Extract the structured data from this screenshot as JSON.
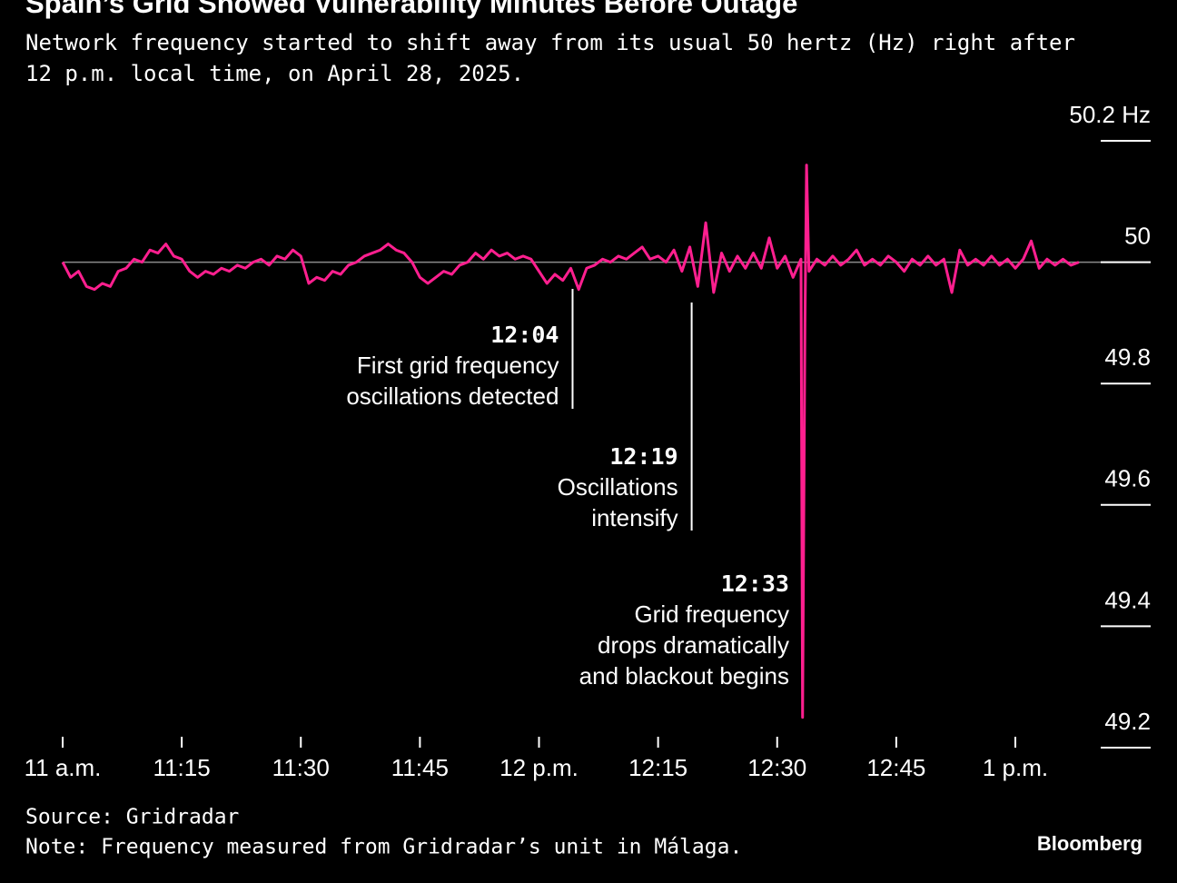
{
  "chart_data": {
    "type": "line",
    "title": "Spain’s Grid Showed Vulnerability Minutes Before Outage",
    "subtitle": [
      "Network frequency started to shift away from its usual 50 hertz (Hz) right after",
      "12 p.m. local time, on April 28, 2025."
    ],
    "xlim": [
      0,
      130
    ],
    "xticks": [
      {
        "value": 0,
        "label": "11 a.m."
      },
      {
        "value": 15,
        "label": "11:15"
      },
      {
        "value": 30,
        "label": "11:30"
      },
      {
        "value": 45,
        "label": "11:45"
      },
      {
        "value": 60,
        "label": "12 p.m."
      },
      {
        "value": 75,
        "label": "12:15"
      },
      {
        "value": 90,
        "label": "12:30"
      },
      {
        "value": 105,
        "label": "12:45"
      },
      {
        "value": 120,
        "label": "1 p.m."
      }
    ],
    "ylim": [
      49.2,
      50.2
    ],
    "yticks": [
      {
        "value": 50.2,
        "label": "50.2 Hz"
      },
      50,
      49.8,
      49.6,
      49.4,
      49.2
    ],
    "reference": 50,
    "series": [
      {
        "color": "#ff1f8f",
        "x": [
          0,
          1,
          2,
          3,
          4,
          5,
          6,
          7,
          8,
          9,
          10,
          11,
          12,
          13,
          14,
          15,
          16,
          17,
          18,
          19,
          20,
          21,
          22,
          23,
          24,
          25,
          26,
          27,
          28,
          29,
          30,
          31,
          32,
          33,
          34,
          35,
          36,
          37,
          38,
          39,
          40,
          41,
          42,
          43,
          44,
          45,
          46,
          47,
          48,
          49,
          50,
          51,
          52,
          53,
          54,
          55,
          56,
          57,
          58,
          59,
          60,
          61,
          62,
          63,
          64,
          65,
          66,
          67,
          68,
          69,
          70,
          71,
          72,
          73,
          74,
          75,
          76,
          77,
          78,
          79,
          80,
          81,
          82,
          83,
          84,
          85,
          86,
          87,
          88,
          89,
          90,
          91,
          92,
          93,
          93.2,
          93.5,
          93.7,
          94,
          95,
          96,
          97,
          98,
          99,
          100,
          101,
          102,
          103,
          104,
          105,
          106,
          107,
          108,
          109,
          110,
          111,
          112,
          113,
          114,
          115,
          116,
          117,
          118,
          119,
          120,
          121,
          122,
          123,
          124,
          125,
          126,
          127,
          128
        ],
        "values": [
          50.0,
          49.975,
          49.985,
          49.96,
          49.955,
          49.965,
          49.96,
          49.985,
          49.99,
          50.005,
          50.0,
          50.02,
          50.015,
          50.03,
          50.01,
          50.005,
          49.985,
          49.975,
          49.985,
          49.98,
          49.99,
          49.985,
          49.995,
          49.99,
          50.0,
          50.005,
          49.995,
          50.01,
          50.005,
          50.02,
          50.01,
          49.965,
          49.975,
          49.97,
          49.985,
          49.98,
          49.995,
          50.0,
          50.01,
          50.015,
          50.02,
          50.03,
          50.02,
          50.015,
          50.0,
          49.975,
          49.965,
          49.975,
          49.985,
          49.98,
          49.995,
          50.0,
          50.015,
          50.005,
          50.02,
          50.01,
          50.015,
          50.005,
          50.01,
          50.005,
          49.985,
          49.965,
          49.98,
          49.97,
          49.99,
          49.955,
          49.99,
          49.995,
          50.005,
          50.0,
          50.01,
          50.005,
          50.015,
          50.025,
          50.005,
          50.01,
          50.0,
          50.02,
          49.985,
          50.025,
          49.96,
          50.065,
          49.95,
          50.015,
          49.985,
          50.01,
          49.99,
          50.015,
          49.99,
          50.04,
          49.99,
          50.01,
          49.975,
          50.005,
          49.25,
          49.9,
          50.16,
          49.985,
          50.005,
          49.995,
          50.01,
          49.995,
          50.005,
          50.02,
          49.995,
          50.005,
          49.995,
          50.01,
          50.0,
          49.985,
          50.005,
          49.995,
          50.01,
          49.995,
          50.005,
          49.95,
          50.02,
          49.995,
          50.005,
          49.995,
          50.01,
          49.995,
          50.005,
          49.99,
          50.005,
          50.035,
          49.99,
          50.005,
          49.995,
          50.005,
          49.995,
          50.0
        ]
      }
    ],
    "annotations": [
      {
        "x": 64,
        "time": "12:04",
        "lines": [
          "First grid frequency",
          "oscillations detected"
        ]
      },
      {
        "x": 79,
        "time": "12:19",
        "lines": [
          "Oscillations",
          "intensify"
        ]
      },
      {
        "x": 93,
        "time": "12:33",
        "lines": [
          "Grid frequency",
          "drops dramatically",
          "and blackout begins"
        ]
      }
    ],
    "source": "Source: Gridradar",
    "note": "Note: Frequency measured from Gridradar’s unit in Málaga.",
    "brand": "Bloomberg"
  }
}
